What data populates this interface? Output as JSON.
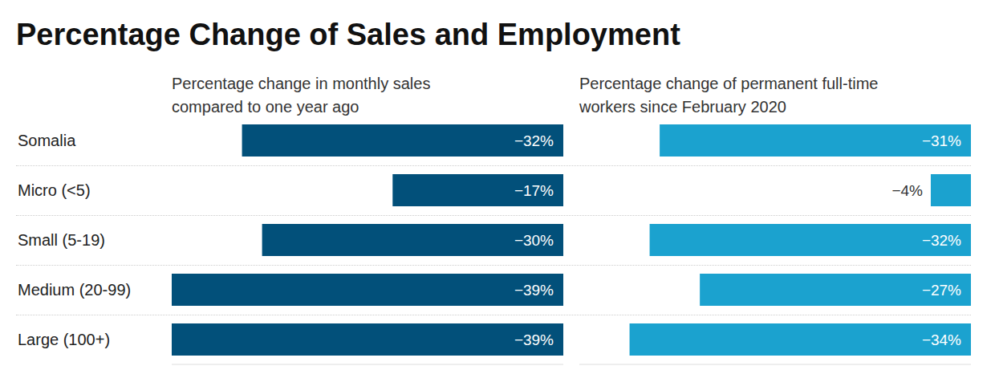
{
  "title": "Percentage Change of Sales and Employment",
  "chart_data": [
    {
      "type": "bar",
      "orientation": "horizontal",
      "title": "Percentage change in monthly sales compared to one year ago",
      "categories": [
        "Somalia",
        "Micro (<5)",
        "Small (5-19)",
        "Medium (20-99)",
        "Large (100+)"
      ],
      "values": [
        -32,
        -17,
        -30,
        -39,
        -39
      ],
      "value_labels": [
        "−32%",
        "−17%",
        "−30%",
        "−39%",
        "−39%"
      ],
      "color": "#02507a",
      "xlim": [
        -39,
        0
      ],
      "data_labels": true,
      "tick_labels": "y"
    },
    {
      "type": "bar",
      "orientation": "horizontal",
      "title": "Percentage change of permanent full-time workers since February 2020",
      "categories": [
        "Somalia",
        "Micro (<5)",
        "Small (5-19)",
        "Medium (20-99)",
        "Large (100+)"
      ],
      "values": [
        -31,
        -4,
        -32,
        -27,
        -34
      ],
      "value_labels": [
        "−31%",
        "−4%",
        "−32%",
        "−27%",
        "−34%"
      ],
      "color": "#1ba2cf",
      "xlim": [
        -39,
        0
      ],
      "data_labels": true,
      "tick_labels": false
    }
  ]
}
